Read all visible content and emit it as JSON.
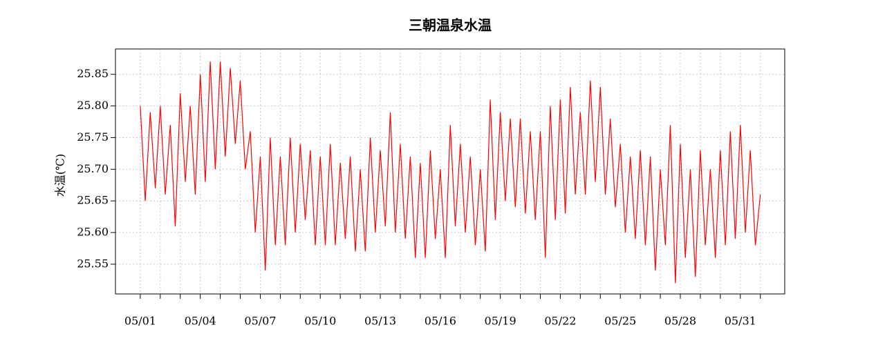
{
  "chart_data": {
    "type": "line",
    "title": "三朝温泉水温",
    "y_label": "水温(℃)",
    "x": [
      1,
      1.25,
      1.5,
      1.75,
      2,
      2.25,
      2.5,
      2.75,
      3,
      3.25,
      3.5,
      3.75,
      4,
      4.25,
      4.5,
      4.75,
      5,
      5.25,
      5.5,
      5.75,
      6,
      6.25,
      6.5,
      6.75,
      7,
      7.25,
      7.5,
      7.75,
      8,
      8.25,
      8.5,
      8.75,
      9,
      9.25,
      9.5,
      9.75,
      10,
      10.25,
      10.5,
      10.75,
      11,
      11.25,
      11.5,
      11.75,
      12,
      12.25,
      12.5,
      12.75,
      13,
      13.25,
      13.5,
      13.75,
      14,
      14.25,
      14.5,
      14.75,
      15,
      15.25,
      15.5,
      15.75,
      16,
      16.25,
      16.5,
      16.75,
      17,
      17.25,
      17.5,
      17.75,
      18,
      18.25,
      18.5,
      18.75,
      19,
      19.25,
      19.5,
      19.75,
      20,
      20.25,
      20.5,
      20.75,
      21,
      21.25,
      21.5,
      21.75,
      22,
      22.25,
      22.5,
      22.75,
      23,
      23.25,
      23.5,
      23.75,
      24,
      24.25,
      24.5,
      24.75,
      25,
      25.25,
      25.5,
      25.75,
      26,
      26.25,
      26.5,
      26.75,
      27,
      27.25,
      27.5,
      27.75,
      28,
      28.25,
      28.5,
      28.75,
      29,
      29.25,
      29.5,
      29.75,
      30,
      30.25,
      30.5,
      30.75,
      31,
      31.25,
      31.5,
      31.75,
      32
    ],
    "series": [
      {
        "name": "水温",
        "color": "#ff0000",
        "values": [
          25.8,
          25.65,
          25.79,
          25.67,
          25.8,
          25.66,
          25.77,
          25.61,
          25.82,
          25.68,
          25.8,
          25.66,
          25.85,
          25.68,
          25.87,
          25.7,
          25.87,
          25.72,
          25.86,
          25.74,
          25.84,
          25.7,
          25.76,
          25.6,
          25.72,
          25.54,
          25.75,
          25.58,
          25.72,
          25.58,
          25.75,
          25.6,
          25.74,
          25.62,
          25.73,
          25.58,
          25.72,
          25.58,
          25.74,
          25.58,
          25.71,
          25.59,
          25.72,
          25.57,
          25.7,
          25.57,
          25.75,
          25.6,
          25.73,
          25.61,
          25.79,
          25.6,
          25.74,
          25.59,
          25.72,
          25.56,
          25.71,
          25.56,
          25.73,
          25.59,
          25.7,
          25.56,
          25.77,
          25.61,
          25.74,
          25.6,
          25.72,
          25.58,
          25.7,
          25.57,
          25.81,
          25.62,
          25.79,
          25.65,
          25.78,
          25.64,
          25.78,
          25.63,
          25.76,
          25.62,
          25.76,
          25.56,
          25.8,
          25.62,
          25.81,
          25.63,
          25.83,
          25.66,
          25.79,
          25.66,
          25.84,
          25.68,
          25.83,
          25.66,
          25.78,
          25.64,
          25.74,
          25.6,
          25.72,
          25.59,
          25.73,
          25.58,
          25.72,
          25.54,
          25.7,
          25.58,
          25.77,
          25.52,
          25.74,
          25.56,
          25.7,
          25.53,
          25.73,
          25.58,
          25.7,
          25.56,
          25.73,
          25.58,
          25.76,
          25.59,
          25.77,
          25.6,
          25.73,
          25.58,
          25.66
        ]
      }
    ],
    "xlim": [
      -0.24,
      33.22
    ],
    "xticks": [
      {
        "value": 1,
        "label": "05/01"
      },
      {
        "value": 4,
        "label": "05/04"
      },
      {
        "value": 7,
        "label": "05/07"
      },
      {
        "value": 10,
        "label": "05/10"
      },
      {
        "value": 13,
        "label": "05/13"
      },
      {
        "value": 16,
        "label": "05/16"
      },
      {
        "value": 19,
        "label": "05/19"
      },
      {
        "value": 22,
        "label": "05/22"
      },
      {
        "value": 25,
        "label": "05/25"
      },
      {
        "value": 28,
        "label": "05/28"
      },
      {
        "value": 31,
        "label": "05/31"
      }
    ],
    "xminorticks": [
      2,
      3,
      5,
      6,
      8,
      9,
      11,
      12,
      14,
      15,
      17,
      18,
      20,
      21,
      23,
      24,
      26,
      27,
      29,
      30,
      32
    ],
    "ylim": [
      25.503,
      25.89
    ],
    "yticks": [
      {
        "value": 25.55,
        "label": "25.55"
      },
      {
        "value": 25.6,
        "label": "25.60"
      },
      {
        "value": 25.65,
        "label": "25.65"
      },
      {
        "value": 25.7,
        "label": "25.70"
      },
      {
        "value": 25.75,
        "label": "25.75"
      },
      {
        "value": 25.8,
        "label": "25.80"
      },
      {
        "value": 25.85,
        "label": "25.85"
      }
    ],
    "grid": true
  }
}
